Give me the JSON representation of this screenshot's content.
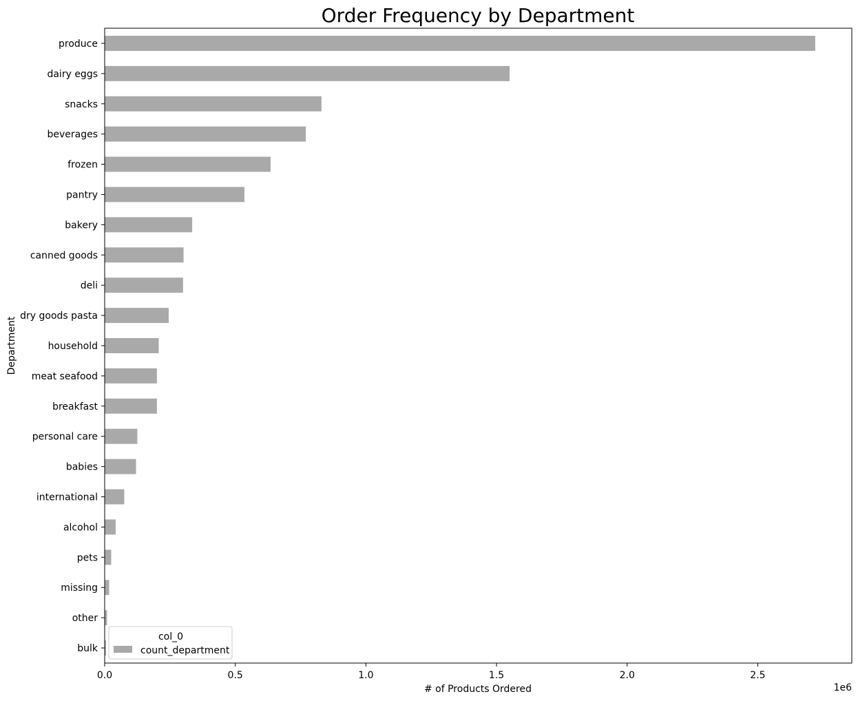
{
  "chart_data": {
    "type": "bar",
    "orientation": "horizontal",
    "title": "Order Frequency by Department",
    "xlabel": "# of Products Ordered",
    "ylabel": "Department",
    "x_offset_label": "1e6",
    "xlim": [
      0,
      2860000
    ],
    "xticks": [
      0,
      500000,
      1000000,
      1500000,
      2000000,
      2500000
    ],
    "xtick_labels": [
      "0.0",
      "0.5",
      "1.0",
      "1.5",
      "2.0",
      "2.5"
    ],
    "grid": false,
    "bar_color": "#a9a9a9",
    "legend": {
      "title": "col_0",
      "placement": "lower-left",
      "entries": [
        "count_department"
      ]
    },
    "series": [
      {
        "name": "count_department",
        "values": [
          2720000,
          1550000,
          830000,
          770000,
          635000,
          535000,
          335000,
          302000,
          300000,
          245000,
          207000,
          200000,
          200000,
          125000,
          120000,
          75000,
          42000,
          25000,
          17000,
          9000,
          5000
        ]
      }
    ],
    "categories": [
      "produce",
      "dairy eggs",
      "snacks",
      "beverages",
      "frozen",
      "pantry",
      "bakery",
      "canned goods",
      "deli",
      "dry goods pasta",
      "household",
      "meat seafood",
      "breakfast",
      "personal care",
      "babies",
      "international",
      "alcohol",
      "pets",
      "missing",
      "other",
      "bulk"
    ]
  }
}
